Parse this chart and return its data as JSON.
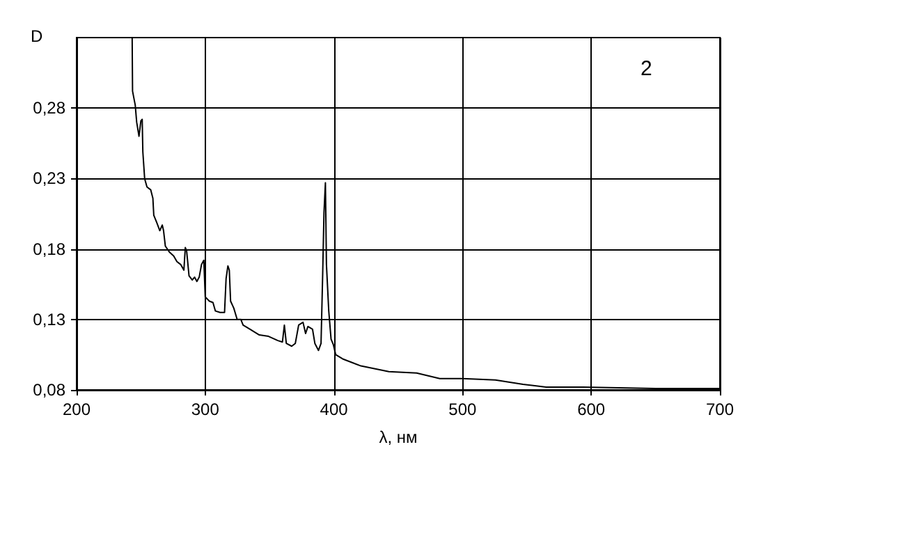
{
  "chart_data": {
    "type": "line",
    "xlabel": "λ, нм",
    "ylabel": "D",
    "annotations": [
      "2"
    ],
    "xlim": [
      200,
      700
    ],
    "xticks": [
      200,
      300,
      400,
      500,
      600,
      700
    ],
    "ylim": [
      0.08,
      0.33
    ],
    "yticks": [
      {
        "value": 0.08,
        "label": "0,08"
      },
      {
        "value": 0.13,
        "label": "0,13"
      },
      {
        "value": 0.18,
        "label": "0,18"
      },
      {
        "value": 0.23,
        "label": "0,23"
      },
      {
        "value": 0.28,
        "label": "0,28"
      }
    ],
    "grid": true,
    "marker": "none",
    "line_style": "solid",
    "series": [
      {
        "color": "#000000",
        "x": [
          243.2,
          243.5,
          245.6,
          246.7,
          248.5,
          250,
          251,
          251.5,
          252.9,
          254.7,
          257.6,
          259.3,
          260,
          262.2,
          264.7,
          266.6,
          267.6,
          269,
          272,
          275.5,
          278,
          280.9,
          283.4,
          284.5,
          285.5,
          287.4,
          289.9,
          291.7,
          293.5,
          295.3,
          297.1,
          298.9,
          300,
          303.2,
          306,
          307.9,
          311.5,
          315,
          316.2,
          317.6,
          318.7,
          319.7,
          322.2,
          324.8,
          327.7,
          329.4,
          334.8,
          342,
          349.2,
          356.4,
          360,
          361.5,
          363,
          367.2,
          370,
          372.6,
          376,
          378,
          379.8,
          383.4,
          385.2,
          388,
          390,
          391.3,
          392.3,
          393.4,
          394.2,
          396,
          397.8,
          399.6,
          401.4,
          406.8,
          421,
          442.7,
          464.3,
          482.3,
          500.2,
          525.5,
          547,
          565,
          593.7,
          650,
          700
        ],
        "values": [
          0.33,
          0.292,
          0.282,
          0.27,
          0.26,
          0.271,
          0.272,
          0.249,
          0.23,
          0.224,
          0.222,
          0.216,
          0.204,
          0.199,
          0.193,
          0.197,
          0.193,
          0.182,
          0.178,
          0.175,
          0.171,
          0.169,
          0.165,
          0.181,
          0.179,
          0.161,
          0.158,
          0.16,
          0.157,
          0.16,
          0.169,
          0.172,
          0.146,
          0.143,
          0.142,
          0.136,
          0.135,
          0.135,
          0.159,
          0.168,
          0.165,
          0.143,
          0.138,
          0.13,
          0.13,
          0.126,
          0.123,
          0.119,
          0.118,
          0.115,
          0.114,
          0.126,
          0.113,
          0.111,
          0.113,
          0.126,
          0.128,
          0.12,
          0.125,
          0.123,
          0.113,
          0.108,
          0.113,
          0.163,
          0.206,
          0.227,
          0.169,
          0.136,
          0.116,
          0.112,
          0.105,
          0.102,
          0.097,
          0.093,
          0.092,
          0.088,
          0.088,
          0.087,
          0.084,
          0.082,
          0.082,
          0.081,
          0.081
        ]
      }
    ]
  }
}
